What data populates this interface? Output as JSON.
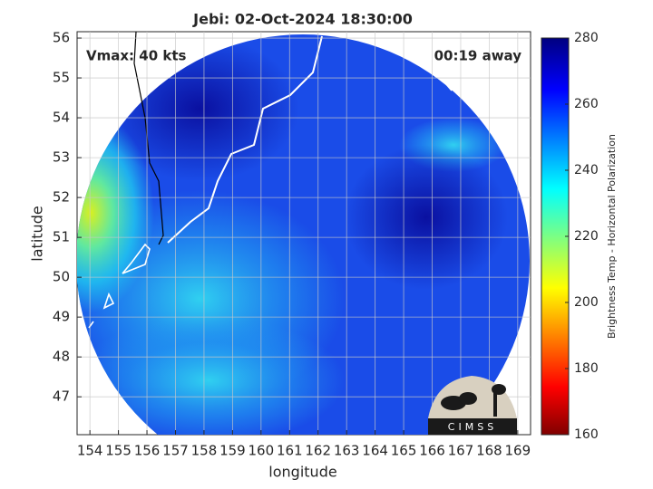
{
  "title": "Jebi: 02-Oct-2024 18:30:00",
  "annotations": {
    "vmax": "Vmax: 40 kts",
    "time_away": "00:19 away"
  },
  "xlabel": "longitude",
  "ylabel": "latitude",
  "xlim": [
    153.55,
    169.45
  ],
  "ylim": [
    46.05,
    56.16
  ],
  "xticks": [
    154,
    155,
    156,
    157,
    158,
    159,
    160,
    161,
    162,
    163,
    164,
    165,
    166,
    167,
    168,
    169
  ],
  "yticks": [
    47,
    48,
    49,
    50,
    51,
    52,
    53,
    54,
    55,
    56
  ],
  "colorbar": {
    "label": "Brightness Temp - Horizontal Polarization",
    "lim": [
      160,
      280
    ],
    "ticks": [
      160,
      180,
      200,
      220,
      240,
      260,
      280
    ]
  },
  "logo": "CIMSS"
}
